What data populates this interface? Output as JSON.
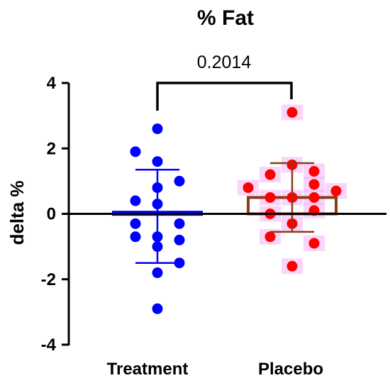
{
  "chart_data": {
    "type": "scatter",
    "title": "% Fat",
    "xlabel": "",
    "ylabel": "delta %",
    "ylim": [
      -4,
      4
    ],
    "yticks": [
      -4,
      -2,
      0,
      2,
      4
    ],
    "categories": [
      "Treatment",
      "Placebo"
    ],
    "comparison": {
      "label": "0.2014",
      "between": [
        "Treatment",
        "Placebo"
      ]
    },
    "series": [
      {
        "category": "Treatment",
        "color": "#0000ff",
        "bar_mean": 0.05,
        "error_low": -1.5,
        "error_high": 1.35,
        "points": [
          {
            "x": 0,
            "y": 2.6
          },
          {
            "x": -1,
            "y": 1.9
          },
          {
            "x": 0,
            "y": 1.6
          },
          {
            "x": 0,
            "y": 0.8
          },
          {
            "x": 1,
            "y": 1.0
          },
          {
            "x": -1,
            "y": 0.4
          },
          {
            "x": 0,
            "y": 0.3
          },
          {
            "x": -1,
            "y": -0.3
          },
          {
            "x": 1,
            "y": -0.3
          },
          {
            "x": -1,
            "y": -0.7
          },
          {
            "x": 0,
            "y": -0.7
          },
          {
            "x": 1,
            "y": -0.8
          },
          {
            "x": 0,
            "y": -1.0
          },
          {
            "x": 1,
            "y": -1.5
          },
          {
            "x": 0,
            "y": -1.8
          },
          {
            "x": 0,
            "y": -2.9
          }
        ]
      },
      {
        "category": "Placebo",
        "color": "#ff0000",
        "bar_color": "#8b3a1a",
        "bar_mean": 0.5,
        "error_low": -0.55,
        "error_high": 1.55,
        "points": [
          {
            "x": 0,
            "y": 3.1
          },
          {
            "x": 0,
            "y": 1.5
          },
          {
            "x": 1,
            "y": 1.3
          },
          {
            "x": -1,
            "y": 1.2
          },
          {
            "x": 1,
            "y": 0.9
          },
          {
            "x": -2,
            "y": 0.8
          },
          {
            "x": 2,
            "y": 0.7
          },
          {
            "x": -1,
            "y": 0.5
          },
          {
            "x": 0,
            "y": 0.5
          },
          {
            "x": 1,
            "y": 0.5
          },
          {
            "x": -1,
            "y": 0.0
          },
          {
            "x": 1,
            "y": 0.1
          },
          {
            "x": 0,
            "y": -0.3
          },
          {
            "x": -1,
            "y": -0.7
          },
          {
            "x": 1,
            "y": -0.9
          },
          {
            "x": 0,
            "y": -1.6
          }
        ]
      }
    ]
  }
}
